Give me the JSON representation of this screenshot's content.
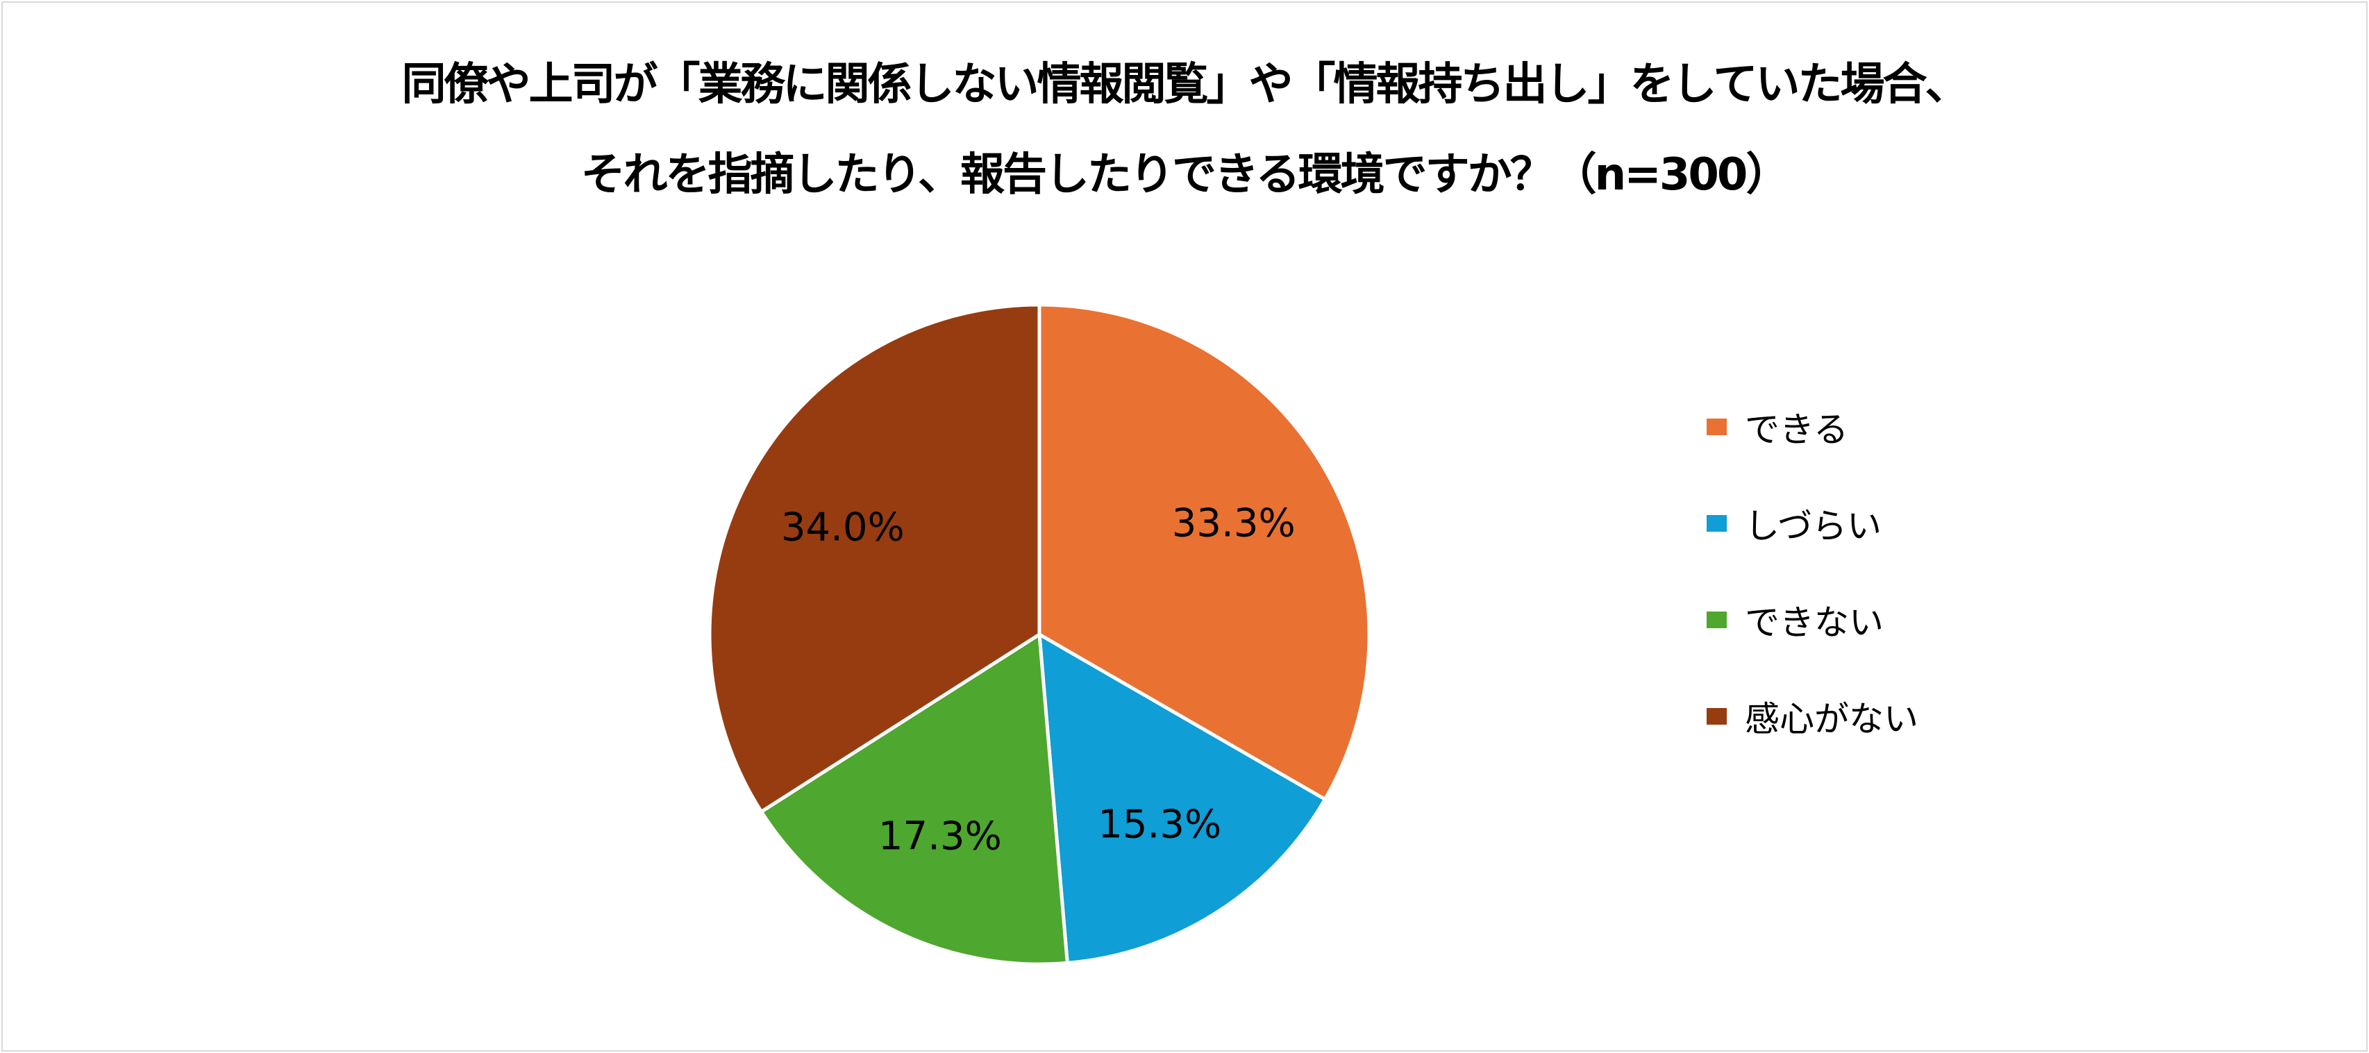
{
  "chart_data": {
    "type": "pie",
    "title": [
      "同僚や上司が「業務に関係しない情報閲覧」や「情報持ち出し」をしていた場合、",
      "それを指摘したり、報告したりできる環境ですか？（n=300）"
    ],
    "categories": [
      "できる",
      "しづらい",
      "できない",
      "感心がない"
    ],
    "values": [
      33.3,
      15.3,
      17.3,
      34.0
    ],
    "data_labels": [
      "33.3%",
      "15.3%",
      "17.3%",
      "34.0%"
    ],
    "colors": [
      "#E97132",
      "#0F9ED5",
      "#4EA72E",
      "#973C11"
    ],
    "start_angle": "12 o'clock",
    "direction": "clockwise",
    "legend_position": "right"
  }
}
